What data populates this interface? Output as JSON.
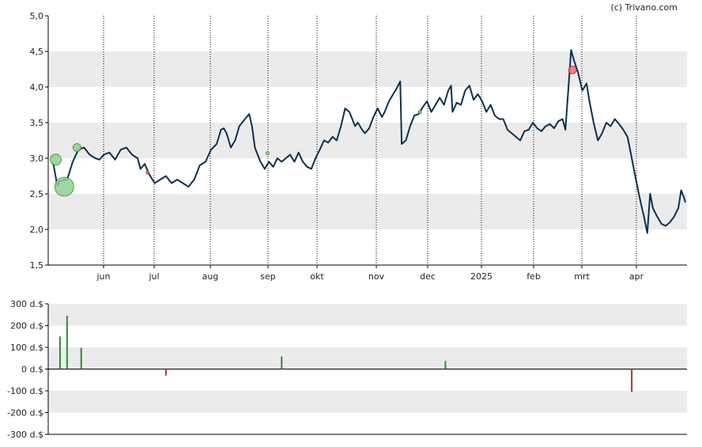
{
  "copyright": "(c) Trivano.com",
  "colors": {
    "price_line": "#0d2f4f",
    "band": "#ebebeb",
    "axis": "#000000",
    "buy": "#2e8b2e",
    "buy_marker": "#8fcf95",
    "sell": "#cc2233",
    "sell_marker": "#e8707a"
  },
  "chart_data": [
    {
      "type": "line",
      "x_ticks": [
        "jun",
        "jul",
        "aug",
        "sep",
        "okt",
        "nov",
        "dec",
        "2025",
        "feb",
        "mrt",
        "apr"
      ],
      "y_ticks": [
        "5,0",
        "4,5",
        "4,0",
        "3,5",
        "3,0",
        "2,5",
        "2,0",
        "1,5"
      ],
      "ylim": [
        1.5,
        5.0
      ],
      "grid": "dotted vertical lines at month starts, alternating horizontal bands",
      "series": [
        {
          "values": [
            [
              0,
              2.95
            ],
            [
              3,
              2.62
            ],
            [
              5,
              2.68
            ],
            [
              10,
              2.7
            ],
            [
              14,
              2.95
            ],
            [
              18,
              3.12
            ],
            [
              22,
              3.15
            ],
            [
              26,
              3.05
            ],
            [
              30,
              3.0
            ],
            [
              33,
              2.98
            ],
            [
              36,
              3.05
            ],
            [
              40,
              3.08
            ],
            [
              44,
              2.98
            ],
            [
              48,
              3.12
            ],
            [
              52,
              3.15
            ],
            [
              56,
              3.05
            ],
            [
              60,
              3.0
            ],
            [
              62,
              2.85
            ],
            [
              65,
              2.92
            ],
            [
              68,
              2.78
            ],
            [
              72,
              2.65
            ],
            [
              76,
              2.7
            ],
            [
              80,
              2.75
            ],
            [
              84,
              2.65
            ],
            [
              88,
              2.7
            ],
            [
              92,
              2.65
            ],
            [
              96,
              2.6
            ],
            [
              100,
              2.7
            ],
            [
              104,
              2.9
            ],
            [
              108,
              2.95
            ],
            [
              112,
              3.12
            ],
            [
              116,
              3.2
            ],
            [
              119,
              3.4
            ],
            [
              121,
              3.42
            ],
            [
              123,
              3.35
            ],
            [
              126,
              3.15
            ],
            [
              129,
              3.25
            ],
            [
              132,
              3.45
            ],
            [
              136,
              3.55
            ],
            [
              139,
              3.62
            ],
            [
              141,
              3.45
            ],
            [
              143,
              3.15
            ],
            [
              145,
              3.05
            ],
            [
              147,
              2.95
            ],
            [
              150,
              2.85
            ],
            [
              153,
              2.95
            ],
            [
              156,
              2.88
            ],
            [
              159,
              3.0
            ],
            [
              162,
              2.95
            ],
            [
              165,
              3.0
            ],
            [
              168,
              3.05
            ],
            [
              171,
              2.95
            ],
            [
              174,
              3.08
            ],
            [
              177,
              2.95
            ],
            [
              180,
              2.88
            ],
            [
              183,
              2.85
            ],
            [
              186,
              3.0
            ],
            [
              189,
              3.12
            ],
            [
              192,
              3.25
            ],
            [
              195,
              3.22
            ],
            [
              198,
              3.3
            ],
            [
              201,
              3.25
            ],
            [
              204,
              3.45
            ],
            [
              207,
              3.7
            ],
            [
              210,
              3.65
            ],
            [
              212,
              3.55
            ],
            [
              214,
              3.45
            ],
            [
              216,
              3.5
            ],
            [
              219,
              3.4
            ],
            [
              221,
              3.35
            ],
            [
              224,
              3.42
            ],
            [
              227,
              3.58
            ],
            [
              230,
              3.7
            ],
            [
              233,
              3.58
            ],
            [
              235,
              3.65
            ],
            [
              238,
              3.8
            ],
            [
              241,
              3.9
            ],
            [
              244,
              4.0
            ],
            [
              246,
              4.08
            ],
            [
              247,
              3.2
            ],
            [
              250,
              3.25
            ],
            [
              253,
              3.45
            ],
            [
              256,
              3.6
            ],
            [
              259,
              3.62
            ],
            [
              262,
              3.72
            ],
            [
              265,
              3.8
            ],
            [
              268,
              3.65
            ],
            [
              271,
              3.75
            ],
            [
              274,
              3.85
            ],
            [
              277,
              3.75
            ],
            [
              280,
              3.95
            ],
            [
              282,
              4.02
            ],
            [
              283,
              3.65
            ],
            [
              286,
              3.78
            ],
            [
              289,
              3.75
            ],
            [
              292,
              3.95
            ],
            [
              295,
              4.02
            ],
            [
              298,
              3.82
            ],
            [
              301,
              3.9
            ],
            [
              304,
              3.8
            ],
            [
              307,
              3.65
            ],
            [
              310,
              3.75
            ],
            [
              313,
              3.6
            ],
            [
              316,
              3.55
            ],
            [
              319,
              3.55
            ],
            [
              322,
              3.4
            ],
            [
              325,
              3.35
            ],
            [
              328,
              3.3
            ],
            [
              331,
              3.25
            ],
            [
              334,
              3.38
            ],
            [
              337,
              3.4
            ],
            [
              340,
              3.5
            ],
            [
              343,
              3.42
            ],
            [
              346,
              3.38
            ],
            [
              349,
              3.45
            ],
            [
              352,
              3.48
            ],
            [
              355,
              3.42
            ],
            [
              358,
              3.52
            ],
            [
              361,
              3.55
            ],
            [
              363,
              3.4
            ],
            [
              365,
              3.95
            ],
            [
              367,
              4.52
            ],
            [
              369,
              4.38
            ],
            [
              372,
              4.2
            ],
            [
              375,
              3.95
            ],
            [
              378,
              4.05
            ],
            [
              380,
              3.8
            ],
            [
              383,
              3.5
            ],
            [
              386,
              3.25
            ],
            [
              389,
              3.35
            ],
            [
              392,
              3.5
            ],
            [
              395,
              3.45
            ],
            [
              398,
              3.55
            ],
            [
              401,
              3.48
            ],
            [
              404,
              3.4
            ],
            [
              407,
              3.3
            ],
            [
              409,
              3.1
            ],
            [
              411,
              2.9
            ],
            [
              413,
              2.7
            ],
            [
              415,
              2.5
            ],
            [
              417,
              2.32
            ],
            [
              419,
              2.15
            ],
            [
              421,
              1.95
            ],
            [
              423,
              2.5
            ],
            [
              425,
              2.3
            ],
            [
              428,
              2.18
            ],
            [
              431,
              2.08
            ],
            [
              434,
              2.05
            ],
            [
              437,
              2.1
            ],
            [
              440,
              2.18
            ],
            [
              443,
              2.3
            ],
            [
              445,
              2.55
            ],
            [
              447,
              2.45
            ],
            [
              448,
              2.38
            ]
          ]
        }
      ],
      "markers": [
        {
          "x": 2,
          "y": 2.98,
          "kind": "buy",
          "size": "medium"
        },
        {
          "x": 8,
          "y": 2.6,
          "kind": "buy",
          "size": "large"
        },
        {
          "x": 17,
          "y": 3.15,
          "kind": "buy",
          "size": "small"
        },
        {
          "x": 67,
          "y": 2.8,
          "kind": "sell",
          "size": "tiny"
        },
        {
          "x": 152,
          "y": 3.07,
          "kind": "buy",
          "size": "tiny"
        },
        {
          "x": 260,
          "y": 3.65,
          "kind": "buy",
          "size": "tiny"
        },
        {
          "x": 368,
          "y": 4.24,
          "kind": "sell",
          "size": "small"
        }
      ]
    },
    {
      "type": "bar",
      "y_ticks": [
        "300 d.$",
        "200 d.$",
        "100 d.$",
        "0 d.$",
        "-100 d.$",
        "-200 d.$",
        "-300 d.$"
      ],
      "ylim": [
        -300,
        300
      ],
      "grid": "alternating horizontal bands",
      "bars": [
        {
          "x": 5,
          "value": 150
        },
        {
          "x": 10,
          "value": 245
        },
        {
          "x": 20,
          "value": 98
        },
        {
          "x": 80,
          "value": -30
        },
        {
          "x": 162,
          "value": 58
        },
        {
          "x": 278,
          "value": 37
        },
        {
          "x": 410,
          "value": -105
        }
      ]
    }
  ]
}
